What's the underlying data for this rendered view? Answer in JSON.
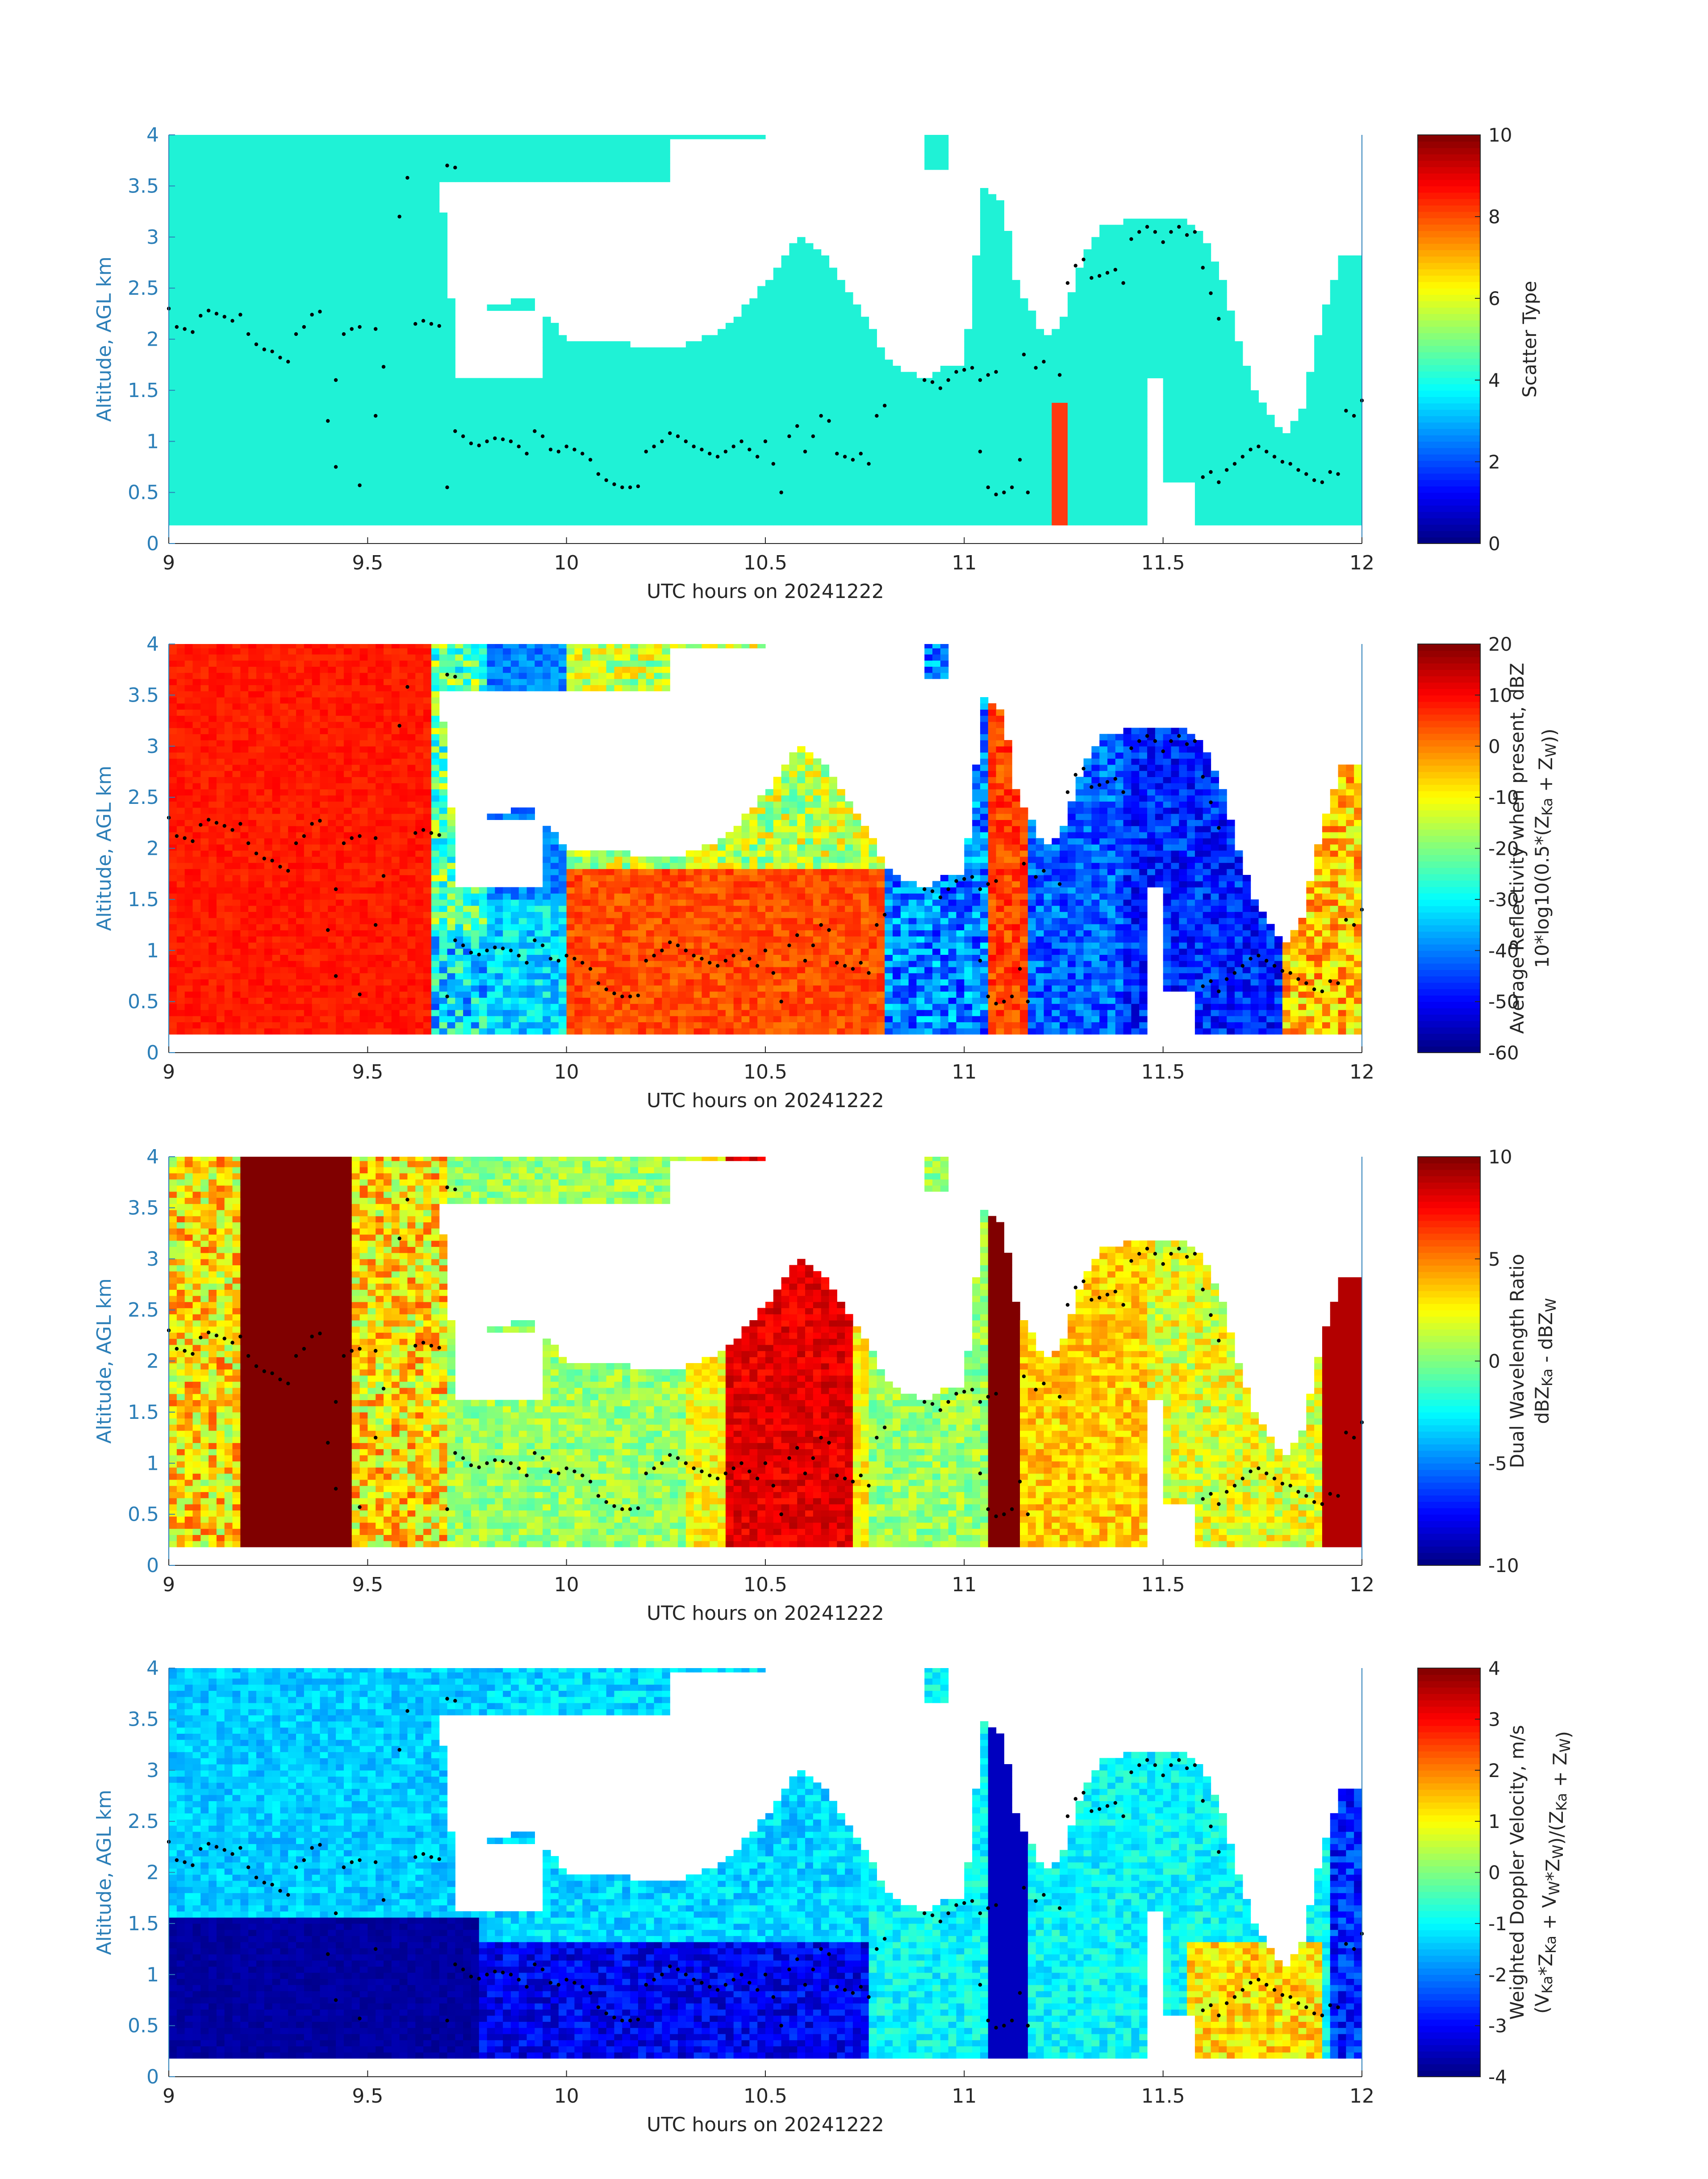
{
  "figure": {
    "background": "#ffffff"
  },
  "colors": {
    "axis_blue": "#2c7fb8",
    "tick_black": "#262626",
    "scatter_cyan": "#1ff2d6",
    "scatter_red": "#ff3a10",
    "dot_color": "#000000",
    "no_data": "#ffffff"
  },
  "chart_data": [
    {
      "id": "p1",
      "type": "heatmap",
      "title": "",
      "xlabel": "UTC hours on 20241222",
      "ylabel": "Altitude, AGL km",
      "xlim": [
        9,
        12
      ],
      "ylim": [
        0,
        4
      ],
      "xticks": [
        9,
        9.5,
        10,
        10.5,
        11,
        11.5,
        12
      ],
      "yticks": [
        0,
        0.5,
        1,
        1.5,
        2,
        2.5,
        3,
        3.5,
        4
      ],
      "colorbar": {
        "label_lines": [
          "Scatter Type"
        ],
        "range": [
          0,
          10
        ],
        "ticks": [
          0,
          2,
          4,
          6,
          8,
          10
        ],
        "colormap": "jet"
      },
      "field": "scatter",
      "description_values": {
        "dominant_value": 3.7,
        "secondary_value": 7.6
      }
    },
    {
      "id": "p2",
      "type": "heatmap",
      "title": "",
      "xlabel": "UTC hours on 20241222",
      "ylabel": "Altitude, AGL km",
      "xlim": [
        9,
        12
      ],
      "ylim": [
        0,
        4
      ],
      "xticks": [
        9,
        9.5,
        10,
        10.5,
        11,
        11.5,
        12
      ],
      "yticks": [
        0,
        0.5,
        1,
        1.5,
        2,
        2.5,
        3,
        3.5,
        4
      ],
      "colorbar": {
        "label_lines": [
          "Average Reflectivity when present, dBZ",
          "10*log10(0.5*(Z_Ka + Z_W))"
        ],
        "range": [
          -60,
          20
        ],
        "ticks": [
          -60,
          -50,
          -40,
          -30,
          -20,
          -10,
          0,
          10,
          20
        ],
        "colormap": "jet"
      },
      "field": "reflectivity"
    },
    {
      "id": "p3",
      "type": "heatmap",
      "title": "",
      "xlabel": "UTC hours on 20241222",
      "ylabel": "Altitude, AGL km",
      "xlim": [
        9,
        12
      ],
      "ylim": [
        0,
        4
      ],
      "xticks": [
        9,
        9.5,
        10,
        10.5,
        11,
        11.5,
        12
      ],
      "yticks": [
        0,
        0.5,
        1,
        1.5,
        2,
        2.5,
        3,
        3.5,
        4
      ],
      "colorbar": {
        "label_lines": [
          "Dual Wavelength Ratio",
          "dBZ_Ka - dBZ_W"
        ],
        "range": [
          -10,
          10
        ],
        "ticks": [
          -10,
          -5,
          0,
          5,
          10
        ],
        "colormap": "jet"
      },
      "field": "dwr"
    },
    {
      "id": "p4",
      "type": "heatmap",
      "title": "",
      "xlabel": "UTC hours on 20241222",
      "ylabel": "Altitude, AGL km",
      "xlim": [
        9,
        12
      ],
      "ylim": [
        0,
        4
      ],
      "xticks": [
        9,
        9.5,
        10,
        10.5,
        11,
        11.5,
        12
      ],
      "yticks": [
        0,
        0.5,
        1,
        1.5,
        2,
        2.5,
        3,
        3.5,
        4
      ],
      "colorbar": {
        "label_lines": [
          "Weighted Doppler Velocity, m/s",
          "(V_Ka*Z_Ka + V_W*Z_W)/(Z_Ka + Z_W)"
        ],
        "range": [
          -4,
          4
        ],
        "ticks": [
          -4,
          -3,
          -2,
          -1,
          0,
          1,
          2,
          3,
          4
        ],
        "colormap": "jet"
      },
      "field": "velocity"
    }
  ],
  "mask_profile": {
    "comment_free": true,
    "bottom_km": 0.2,
    "top_points": [
      [
        9.0,
        4.0
      ],
      [
        9.68,
        4.0
      ],
      [
        9.7,
        2.5
      ],
      [
        9.72,
        2.28
      ],
      [
        9.8,
        2.3
      ],
      [
        9.9,
        2.42
      ],
      [
        9.93,
        2.3
      ],
      [
        9.96,
        2.2
      ],
      [
        10.0,
        2.0
      ],
      [
        10.05,
        2.0
      ],
      [
        10.15,
        1.95
      ],
      [
        10.3,
        1.95
      ],
      [
        10.4,
        2.1
      ],
      [
        10.5,
        2.55
      ],
      [
        10.58,
        3.0
      ],
      [
        10.65,
        2.8
      ],
      [
        10.75,
        2.2
      ],
      [
        10.82,
        1.75
      ],
      [
        10.9,
        1.6
      ],
      [
        10.95,
        1.75
      ],
      [
        11.0,
        1.75
      ],
      [
        11.05,
        3.5
      ],
      [
        11.1,
        3.3
      ],
      [
        11.13,
        2.6
      ],
      [
        11.2,
        2.0
      ],
      [
        11.25,
        2.2
      ],
      [
        11.3,
        2.8
      ],
      [
        11.35,
        3.1
      ],
      [
        11.45,
        3.2
      ],
      [
        11.55,
        3.2
      ],
      [
        11.6,
        3.05
      ],
      [
        11.65,
        2.6
      ],
      [
        11.68,
        2.1
      ],
      [
        11.72,
        1.6
      ],
      [
        11.76,
        1.3
      ],
      [
        11.8,
        1.05
      ],
      [
        11.85,
        1.3
      ],
      [
        11.9,
        2.2
      ],
      [
        11.95,
        2.8
      ],
      [
        12.0,
        2.8
      ]
    ],
    "gap": [
      [
        11.45,
        11.5,
        0.2,
        1.6
      ]
    ],
    "upper_blobs": [
      [
        9.0,
        10.25,
        3.55,
        4.0
      ],
      [
        10.25,
        10.5,
        3.95,
        4.0
      ],
      [
        10.9,
        10.95,
        3.65,
        4.0
      ]
    ]
  },
  "dot_track": {
    "upper": [
      [
        9.0,
        2.3
      ],
      [
        9.02,
        2.12
      ],
      [
        9.04,
        2.1
      ],
      [
        9.06,
        2.07
      ],
      [
        9.08,
        2.23
      ],
      [
        9.1,
        2.28
      ],
      [
        9.12,
        2.25
      ],
      [
        9.14,
        2.22
      ],
      [
        9.16,
        2.18
      ],
      [
        9.18,
        2.24
      ],
      [
        9.2,
        2.05
      ],
      [
        9.22,
        1.95
      ],
      [
        9.24,
        1.9
      ],
      [
        9.26,
        1.88
      ],
      [
        9.28,
        1.82
      ],
      [
        9.3,
        1.78
      ],
      [
        9.32,
        2.05
      ],
      [
        9.34,
        2.12
      ],
      [
        9.36,
        2.24
      ],
      [
        9.38,
        2.27
      ],
      [
        9.42,
        1.6
      ],
      [
        9.44,
        2.05
      ],
      [
        9.46,
        2.1
      ],
      [
        9.48,
        2.12
      ],
      [
        9.52,
        2.1
      ],
      [
        9.54,
        1.73
      ],
      [
        9.58,
        3.2
      ],
      [
        9.6,
        3.58
      ],
      [
        9.62,
        2.15
      ],
      [
        9.64,
        2.18
      ],
      [
        9.66,
        2.15
      ],
      [
        9.68,
        2.13
      ],
      [
        9.7,
        3.7
      ],
      [
        9.72,
        3.68
      ],
      [
        10.9,
        1.6
      ],
      [
        10.92,
        1.58
      ],
      [
        10.94,
        1.52
      ],
      [
        10.96,
        1.6
      ],
      [
        10.98,
        1.68
      ],
      [
        11.0,
        1.7
      ],
      [
        11.02,
        1.72
      ],
      [
        11.04,
        1.6
      ],
      [
        11.06,
        1.65
      ],
      [
        11.08,
        1.68
      ],
      [
        11.15,
        1.85
      ],
      [
        11.18,
        1.72
      ],
      [
        11.2,
        1.78
      ],
      [
        11.24,
        1.65
      ],
      [
        11.26,
        2.55
      ],
      [
        11.28,
        2.72
      ],
      [
        11.3,
        2.78
      ],
      [
        11.32,
        2.6
      ],
      [
        11.34,
        2.62
      ],
      [
        11.36,
        2.65
      ],
      [
        11.38,
        2.68
      ],
      [
        11.4,
        2.55
      ],
      [
        11.42,
        2.98
      ],
      [
        11.44,
        3.05
      ],
      [
        11.46,
        3.1
      ],
      [
        11.48,
        3.05
      ],
      [
        11.5,
        2.95
      ],
      [
        11.52,
        3.05
      ],
      [
        11.54,
        3.1
      ],
      [
        11.56,
        3.02
      ],
      [
        11.58,
        3.05
      ],
      [
        11.6,
        2.7
      ],
      [
        11.62,
        2.45
      ],
      [
        11.64,
        2.2
      ]
    ],
    "lower": [
      [
        9.4,
        1.2
      ],
      [
        9.42,
        0.75
      ],
      [
        9.48,
        0.57
      ],
      [
        9.52,
        1.25
      ],
      [
        9.7,
        0.55
      ],
      [
        9.72,
        1.1
      ],
      [
        9.74,
        1.05
      ],
      [
        9.76,
        0.98
      ],
      [
        9.78,
        0.96
      ],
      [
        9.8,
        1.0
      ],
      [
        9.82,
        1.03
      ],
      [
        9.84,
        1.02
      ],
      [
        9.86,
        1.0
      ],
      [
        9.88,
        0.95
      ],
      [
        9.9,
        0.88
      ],
      [
        9.92,
        1.1
      ],
      [
        9.94,
        1.05
      ],
      [
        9.96,
        0.92
      ],
      [
        9.98,
        0.9
      ],
      [
        10.0,
        0.95
      ],
      [
        10.02,
        0.92
      ],
      [
        10.04,
        0.88
      ],
      [
        10.06,
        0.82
      ],
      [
        10.08,
        0.68
      ],
      [
        10.1,
        0.62
      ],
      [
        10.12,
        0.58
      ],
      [
        10.14,
        0.55
      ],
      [
        10.16,
        0.55
      ],
      [
        10.18,
        0.56
      ],
      [
        10.2,
        0.9
      ],
      [
        10.22,
        0.95
      ],
      [
        10.24,
        1.0
      ],
      [
        10.26,
        1.08
      ],
      [
        10.28,
        1.05
      ],
      [
        10.3,
        1.0
      ],
      [
        10.32,
        0.95
      ],
      [
        10.34,
        0.92
      ],
      [
        10.36,
        0.88
      ],
      [
        10.38,
        0.85
      ],
      [
        10.4,
        0.9
      ],
      [
        10.42,
        0.95
      ],
      [
        10.44,
        1.0
      ],
      [
        10.46,
        0.92
      ],
      [
        10.48,
        0.85
      ],
      [
        10.5,
        1.0
      ],
      [
        10.52,
        0.78
      ],
      [
        10.54,
        0.5
      ],
      [
        10.56,
        1.05
      ],
      [
        10.58,
        1.15
      ],
      [
        10.6,
        0.9
      ],
      [
        10.62,
        1.05
      ],
      [
        10.64,
        1.25
      ],
      [
        10.66,
        1.2
      ],
      [
        10.68,
        0.88
      ],
      [
        10.7,
        0.85
      ],
      [
        10.72,
        0.82
      ],
      [
        10.74,
        0.88
      ],
      [
        10.76,
        0.78
      ],
      [
        10.78,
        1.25
      ],
      [
        10.8,
        1.35
      ],
      [
        11.04,
        0.9
      ],
      [
        11.06,
        0.55
      ],
      [
        11.08,
        0.48
      ],
      [
        11.1,
        0.5
      ],
      [
        11.12,
        0.55
      ],
      [
        11.14,
        0.82
      ],
      [
        11.16,
        0.5
      ],
      [
        11.6,
        0.65
      ],
      [
        11.62,
        0.7
      ],
      [
        11.64,
        0.6
      ],
      [
        11.66,
        0.72
      ],
      [
        11.68,
        0.78
      ],
      [
        11.7,
        0.85
      ],
      [
        11.72,
        0.92
      ],
      [
        11.74,
        0.95
      ],
      [
        11.76,
        0.9
      ],
      [
        11.78,
        0.85
      ],
      [
        11.8,
        0.8
      ],
      [
        11.82,
        0.78
      ],
      [
        11.84,
        0.72
      ],
      [
        11.86,
        0.68
      ],
      [
        11.88,
        0.62
      ],
      [
        11.9,
        0.6
      ],
      [
        11.92,
        0.7
      ],
      [
        11.94,
        0.68
      ],
      [
        11.96,
        1.3
      ],
      [
        11.98,
        1.25
      ],
      [
        12.0,
        1.4
      ]
    ]
  }
}
